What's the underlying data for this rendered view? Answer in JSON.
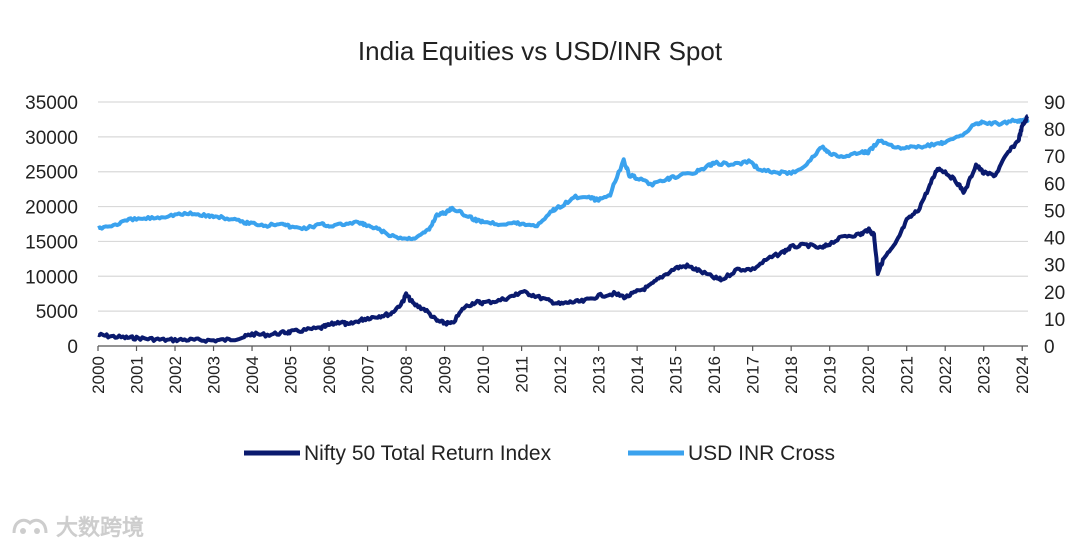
{
  "chart_data": {
    "type": "line",
    "title": "India Equities vs USD/INR Spot",
    "xlabel": "",
    "ylabel_left": "",
    "ylabel_right": "",
    "x_ticks": [
      "2000",
      "2001",
      "2002",
      "2003",
      "2004",
      "2005",
      "2006",
      "2007",
      "2008",
      "2009",
      "2010",
      "2011",
      "2012",
      "2013",
      "2014",
      "2015",
      "2016",
      "2017",
      "2018",
      "2019",
      "2020",
      "2021",
      "2022",
      "2023",
      "2024"
    ],
    "xlim": [
      2000,
      2024.15
    ],
    "y_left": {
      "ticks": [
        0,
        5000,
        10000,
        15000,
        20000,
        25000,
        30000,
        35000
      ],
      "ylim": [
        0,
        35000
      ]
    },
    "y_right": {
      "ticks": [
        0,
        10,
        20,
        30,
        40,
        50,
        60,
        70,
        80,
        90
      ],
      "ylim": [
        0,
        90
      ]
    },
    "grid": true,
    "legend_position": "bottom",
    "series": [
      {
        "name": "Nifty 50 Total Return Index",
        "axis": "left",
        "color": "#0a1a6e",
        "points": [
          [
            2000.0,
            1600
          ],
          [
            2000.3,
            1400
          ],
          [
            2000.7,
            1200
          ],
          [
            2001.0,
            1150
          ],
          [
            2001.4,
            1000
          ],
          [
            2001.8,
            850
          ],
          [
            2002.2,
            900
          ],
          [
            2002.6,
            850
          ],
          [
            2003.0,
            800
          ],
          [
            2003.4,
            900
          ],
          [
            2003.8,
            1300
          ],
          [
            2004.0,
            1700
          ],
          [
            2004.4,
            1600
          ],
          [
            2004.8,
            1900
          ],
          [
            2005.0,
            2000
          ],
          [
            2005.4,
            2300
          ],
          [
            2005.8,
            2600
          ],
          [
            2006.0,
            3000
          ],
          [
            2006.3,
            3500
          ],
          [
            2006.5,
            3000
          ],
          [
            2006.8,
            3700
          ],
          [
            2007.0,
            4000
          ],
          [
            2007.3,
            4300
          ],
          [
            2007.6,
            4600
          ],
          [
            2007.9,
            6200
          ],
          [
            2008.0,
            7400
          ],
          [
            2008.2,
            6000
          ],
          [
            2008.5,
            5200
          ],
          [
            2008.8,
            3600
          ],
          [
            2009.0,
            3300
          ],
          [
            2009.2,
            3200
          ],
          [
            2009.5,
            5500
          ],
          [
            2009.8,
            6300
          ],
          [
            2010.0,
            6200
          ],
          [
            2010.4,
            6500
          ],
          [
            2010.8,
            7200
          ],
          [
            2011.0,
            7800
          ],
          [
            2011.3,
            7300
          ],
          [
            2011.7,
            6500
          ],
          [
            2012.0,
            6000
          ],
          [
            2012.3,
            6300
          ],
          [
            2012.6,
            6400
          ],
          [
            2013.0,
            7200
          ],
          [
            2013.4,
            7500
          ],
          [
            2013.7,
            7000
          ],
          [
            2014.0,
            7800
          ],
          [
            2014.3,
            8500
          ],
          [
            2014.6,
            9800
          ],
          [
            2015.0,
            11200
          ],
          [
            2015.3,
            11500
          ],
          [
            2015.6,
            10800
          ],
          [
            2016.0,
            9800
          ],
          [
            2016.2,
            9500
          ],
          [
            2016.6,
            11000
          ],
          [
            2017.0,
            11000
          ],
          [
            2017.4,
            12500
          ],
          [
            2017.8,
            13500
          ],
          [
            2018.0,
            14200
          ],
          [
            2018.4,
            14500
          ],
          [
            2018.8,
            14000
          ],
          [
            2019.0,
            14700
          ],
          [
            2019.4,
            15800
          ],
          [
            2019.8,
            16000
          ],
          [
            2020.0,
            16700
          ],
          [
            2020.15,
            16000
          ],
          [
            2020.25,
            10500
          ],
          [
            2020.4,
            12500
          ],
          [
            2020.7,
            14500
          ],
          [
            2021.0,
            18000
          ],
          [
            2021.3,
            19500
          ],
          [
            2021.6,
            23000
          ],
          [
            2021.8,
            25500
          ],
          [
            2022.0,
            25000
          ],
          [
            2022.3,
            23500
          ],
          [
            2022.5,
            22000
          ],
          [
            2022.8,
            26000
          ],
          [
            2023.0,
            24800
          ],
          [
            2023.3,
            24500
          ],
          [
            2023.6,
            27500
          ],
          [
            2023.9,
            29500
          ],
          [
            2024.0,
            31500
          ],
          [
            2024.15,
            33000
          ]
        ]
      },
      {
        "name": "USD INR Cross",
        "axis": "right",
        "color": "#3aa2ee",
        "points": [
          [
            2000.0,
            43.5
          ],
          [
            2000.4,
            44.5
          ],
          [
            2000.8,
            46.5
          ],
          [
            2001.2,
            47
          ],
          [
            2001.6,
            47.5
          ],
          [
            2002.0,
            48.5
          ],
          [
            2002.4,
            48.8
          ],
          [
            2002.8,
            48.2
          ],
          [
            2003.0,
            47.8
          ],
          [
            2003.4,
            47
          ],
          [
            2003.8,
            45.5
          ],
          [
            2004.0,
            45.3
          ],
          [
            2004.4,
            44.5
          ],
          [
            2004.8,
            45.5
          ],
          [
            2005.0,
            43.8
          ],
          [
            2005.4,
            43.5
          ],
          [
            2005.8,
            45
          ],
          [
            2006.0,
            44.3
          ],
          [
            2006.4,
            45
          ],
          [
            2006.8,
            45.5
          ],
          [
            2007.0,
            44.2
          ],
          [
            2007.3,
            43
          ],
          [
            2007.6,
            40.5
          ],
          [
            2008.0,
            39.5
          ],
          [
            2008.3,
            40.2
          ],
          [
            2008.6,
            43
          ],
          [
            2008.8,
            48.5
          ],
          [
            2009.0,
            49
          ],
          [
            2009.2,
            51
          ],
          [
            2009.5,
            48.5
          ],
          [
            2009.8,
            46.5
          ],
          [
            2010.0,
            46
          ],
          [
            2010.4,
            45
          ],
          [
            2010.8,
            45.5
          ],
          [
            2011.0,
            45
          ],
          [
            2011.4,
            44.5
          ],
          [
            2011.8,
            50
          ],
          [
            2012.0,
            51.5
          ],
          [
            2012.4,
            55
          ],
          [
            2012.8,
            54.5
          ],
          [
            2013.0,
            53.8
          ],
          [
            2013.3,
            56
          ],
          [
            2013.65,
            68.5
          ],
          [
            2013.8,
            63
          ],
          [
            2014.0,
            62
          ],
          [
            2014.4,
            59.5
          ],
          [
            2014.8,
            61.5
          ],
          [
            2015.0,
            62.5
          ],
          [
            2015.5,
            64
          ],
          [
            2015.8,
            66
          ],
          [
            2016.0,
            67.5
          ],
          [
            2016.5,
            67
          ],
          [
            2016.9,
            68
          ],
          [
            2017.2,
            65
          ],
          [
            2017.6,
            64
          ],
          [
            2018.0,
            63.8
          ],
          [
            2018.4,
            67
          ],
          [
            2018.8,
            73.5
          ],
          [
            2019.0,
            71
          ],
          [
            2019.4,
            69.5
          ],
          [
            2019.8,
            71.5
          ],
          [
            2020.0,
            71.5
          ],
          [
            2020.3,
            76
          ],
          [
            2020.7,
            73.5
          ],
          [
            2021.0,
            73
          ],
          [
            2021.4,
            73.5
          ],
          [
            2021.8,
            74.5
          ],
          [
            2022.0,
            75
          ],
          [
            2022.4,
            77.5
          ],
          [
            2022.8,
            82
          ],
          [
            2023.0,
            82.5
          ],
          [
            2023.4,
            82
          ],
          [
            2023.8,
            83.2
          ],
          [
            2024.0,
            83
          ],
          [
            2024.15,
            83.4
          ]
        ]
      }
    ]
  },
  "watermark": {
    "text": "大数跨境"
  }
}
